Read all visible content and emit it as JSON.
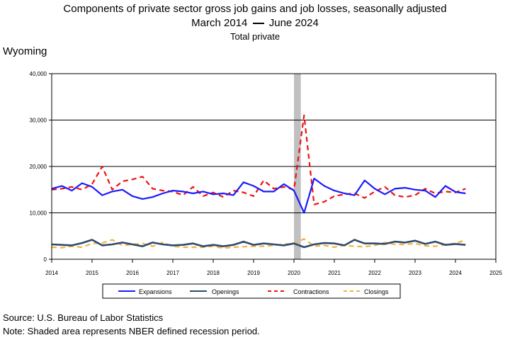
{
  "header": {
    "title": "Components of private sector gross job gains and job losses, seasonally adjusted",
    "subtitle_start": "March 2014",
    "subtitle_end": "June 2024",
    "series_label": "Total private",
    "state": "Wyoming"
  },
  "footer": {
    "source": "Source: U.S. Bureau of Labor Statistics",
    "note": "Note: Shaded area represents NBER defined recession period."
  },
  "colors": {
    "expansions": "#1a1aff",
    "openings": "#2e4a6e",
    "contractions": "#ee1111",
    "closings": "#f4b23a",
    "recession": "#c0c0c0"
  },
  "chart_data": {
    "type": "line",
    "title": "Components of private sector gross job gains and job losses, seasonally adjusted",
    "xlim": [
      2014,
      2025
    ],
    "ylim": [
      0,
      40000
    ],
    "x_ticks": [
      "2014",
      "2015",
      "2016",
      "2017",
      "2018",
      "2019",
      "2020",
      "2021",
      "2022",
      "2023",
      "2024",
      "2025"
    ],
    "y_ticks": [
      "0",
      "10,000",
      "20,000",
      "30,000",
      "40,000"
    ],
    "recession": {
      "start": 2020.0,
      "end": 2020.17
    },
    "legend_position": "bottom",
    "grid": "horizontal",
    "x": [
      2014.0,
      2014.25,
      2014.5,
      2014.75,
      2015.0,
      2015.25,
      2015.5,
      2015.75,
      2016.0,
      2016.25,
      2016.5,
      2016.75,
      2017.0,
      2017.25,
      2017.5,
      2017.75,
      2018.0,
      2018.25,
      2018.5,
      2018.75,
      2019.0,
      2019.25,
      2019.5,
      2019.75,
      2020.0,
      2020.25,
      2020.5,
      2020.75,
      2021.0,
      2021.25,
      2021.5,
      2021.75,
      2022.0,
      2022.25,
      2022.5,
      2022.75,
      2023.0,
      2023.25,
      2023.5,
      2023.75,
      2024.0,
      2024.25
    ],
    "series": [
      {
        "name": "Expansions",
        "style": "solid",
        "values": [
          15200,
          15800,
          14800,
          16400,
          15600,
          13800,
          14600,
          15000,
          13600,
          13000,
          13400,
          14200,
          14800,
          14600,
          14200,
          14600,
          14000,
          14200,
          13800,
          16600,
          15800,
          14600,
          14600,
          16200,
          14800,
          10000,
          17400,
          15800,
          14800,
          14200,
          13800,
          17000,
          15200,
          14000,
          15200,
          15400,
          15000,
          14800,
          13400,
          15800,
          14500,
          14200
        ]
      },
      {
        "name": "Openings",
        "style": "solid",
        "values": [
          3200,
          3100,
          3000,
          3500,
          4200,
          3000,
          3200,
          3600,
          3200,
          2800,
          3600,
          3200,
          3000,
          3100,
          3400,
          2800,
          3100,
          2800,
          3100,
          3800,
          3100,
          3400,
          3200,
          3000,
          3400,
          2600,
          3200,
          3500,
          3400,
          3000,
          4200,
          3400,
          3400,
          3300,
          3800,
          3600,
          4000,
          3300,
          3800,
          3100,
          3300,
          3100
        ]
      },
      {
        "name": "Contractions",
        "style": "dashed",
        "values": [
          15000,
          15200,
          15600,
          15000,
          16200,
          20000,
          15000,
          16800,
          17200,
          17800,
          15200,
          14800,
          14600,
          13800,
          15600,
          13600,
          14400,
          13400,
          14800,
          14400,
          13600,
          17000,
          15200,
          15600,
          15000,
          31000,
          11800,
          12400,
          13600,
          14000,
          14200,
          13200,
          14600,
          15600,
          13800,
          13400,
          13800,
          15200,
          14200,
          14600,
          14400,
          15200
        ]
      },
      {
        "name": "Closings",
        "style": "dashed",
        "values": [
          2600,
          2500,
          2800,
          2600,
          3400,
          3500,
          4200,
          3000,
          3200,
          3400,
          2800,
          3600,
          2800,
          2600,
          2600,
          2600,
          2800,
          2400,
          2600,
          2700,
          2800,
          2800,
          3000,
          3200,
          3400,
          4400,
          2800,
          3000,
          2600,
          3000,
          2800,
          2700,
          3000,
          3600,
          3200,
          3200,
          3400,
          2900,
          2800,
          3200,
          3400,
          4200
        ]
      }
    ]
  }
}
